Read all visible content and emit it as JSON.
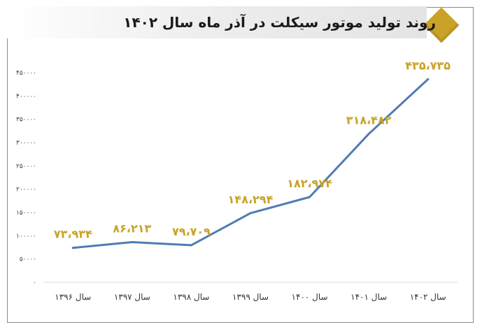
{
  "chart_data": {
    "type": "line",
    "title": "روند تولید موتور سیکلت در آذر ماه سال ۱۴۰۲",
    "categories": [
      "سال ۱۳۹۶",
      "سال ۱۳۹۷",
      "سال ۱۳۹۸",
      "سال ۱۳۹۹",
      "سال ۱۴۰۰",
      "سال ۱۴۰۱",
      "سال ۱۴۰۲"
    ],
    "values": [
      73934,
      86213,
      79709,
      148294,
      182974,
      318482,
      435735
    ],
    "data_labels": [
      "۷۳،۹۳۴",
      "۸۶،۲۱۳",
      "۷۹،۷۰۹",
      "۱۴۸،۲۹۴",
      "۱۸۲،۹۷۴",
      "۳۱۸،۴۸۲",
      "۴۳۵،۷۳۵"
    ],
    "yticks": [
      0,
      50000,
      100000,
      150000,
      200000,
      250000,
      300000,
      350000,
      400000,
      450000
    ],
    "ytick_labels": [
      "۰",
      "۵۰۰۰۰",
      "۱۰۰۰۰۰",
      "۱۵۰۰۰۰",
      "۲۰۰۰۰۰",
      "۲۵۰۰۰۰",
      "۳۰۰۰۰۰",
      "۳۵۰۰۰۰",
      "۴۰۰۰۰۰",
      "۴۵۰۰۰۰"
    ],
    "ylim": [
      0,
      450000
    ],
    "xlabel": "",
    "ylabel": "",
    "grid": false,
    "line_color": "#4f7cb3",
    "label_color": "#c9a227"
  }
}
